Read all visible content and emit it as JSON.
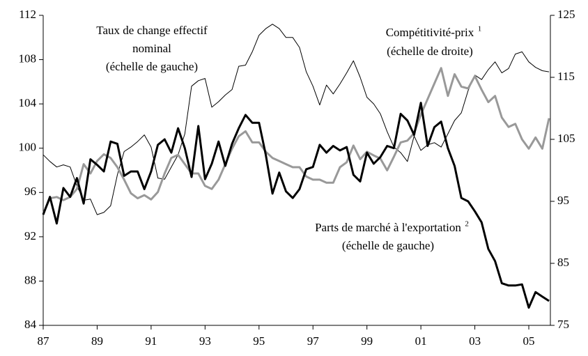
{
  "chart_data": {
    "type": "line",
    "x": [
      1987,
      1987.25,
      1987.5,
      1987.75,
      1988,
      1988.25,
      1988.5,
      1988.75,
      1989,
      1989.25,
      1989.5,
      1989.75,
      1990,
      1990.25,
      1990.5,
      1990.75,
      1991,
      1991.25,
      1991.5,
      1991.75,
      1992,
      1992.25,
      1992.5,
      1992.75,
      1993,
      1993.25,
      1993.5,
      1993.75,
      1994,
      1994.25,
      1994.5,
      1994.75,
      1995,
      1995.25,
      1995.5,
      1995.75,
      1996,
      1996.25,
      1996.5,
      1996.75,
      1997,
      1997.25,
      1997.5,
      1997.75,
      1998,
      1998.25,
      1998.5,
      1998.75,
      1999,
      1999.25,
      1999.5,
      1999.75,
      2000,
      2000.25,
      2000.5,
      2000.75,
      2001,
      2001.25,
      2001.5,
      2001.75,
      2002,
      2002.25,
      2002.5,
      2002.75,
      2003,
      2003.25,
      2003.5,
      2003.75,
      2004,
      2004.25,
      2004.5,
      2004.75,
      2005,
      2005.25,
      2005.5,
      2005.75
    ],
    "series": [
      {
        "color": "#000000",
        "width": 1,
        "axis": "y",
        "values": [
          99.4,
          98.8,
          98.3,
          98.5,
          98.3,
          96.6,
          95.3,
          95.4,
          94,
          94.2,
          94.8,
          97.6,
          99.7,
          100.1,
          100.6,
          101.2,
          100.1,
          97.3,
          97.2,
          98.3,
          99.4,
          101.3,
          105.6,
          106.1,
          106.3,
          103.7,
          104.2,
          104.8,
          105.3,
          107.4,
          107.5,
          108.7,
          110.2,
          110.8,
          111.2,
          110.8,
          110,
          110,
          109.1,
          106.9,
          105.6,
          103.9,
          105.7,
          104.9,
          105.8,
          106.8,
          107.9,
          106.4,
          104.6,
          104,
          103.1,
          101.5,
          100.1,
          99.6,
          98.8,
          101.1,
          99.8,
          100.3,
          100.5,
          100.1,
          101.3,
          102.5,
          103.2,
          105.2,
          106.6,
          106.2,
          107.1,
          107.8,
          106.8,
          107.2,
          108.5,
          108.7,
          107.8,
          107.3,
          107,
          106.9
        ]
      },
      {
        "color": "#999999",
        "width": 3,
        "axis": "y2",
        "values": [
          93,
          95.5,
          95.7,
          95.2,
          95.7,
          97,
          101,
          99.5,
          101.5,
          102.6,
          102,
          100.5,
          98.5,
          96.3,
          95.5,
          96,
          95.3,
          96.5,
          99.5,
          102,
          102.5,
          101,
          99.5,
          99.5,
          97.5,
          97,
          98.5,
          101,
          103.5,
          105.5,
          106.3,
          104.5,
          104.5,
          103,
          102,
          101.5,
          101,
          100.5,
          100.5,
          99,
          98.5,
          98.5,
          98,
          98,
          100.5,
          101.3,
          104,
          101.8,
          103,
          102.4,
          101.9,
          100,
          102.2,
          104.5,
          104.8,
          106,
          109,
          111.5,
          114,
          116.5,
          112,
          115.5,
          113.5,
          113.2,
          115.2,
          113,
          111,
          112,
          108.5,
          107,
          107.5,
          105,
          103.5,
          105.3,
          103.5,
          108.4
        ]
      },
      {
        "color": "#000000",
        "width": 3,
        "axis": "y",
        "values": [
          94,
          95.6,
          93.2,
          96.4,
          95.6,
          97.3,
          95,
          99,
          98.5,
          97.9,
          100.6,
          100.4,
          97.5,
          97.9,
          97.9,
          96.3,
          97.9,
          100.3,
          100.8,
          99.6,
          101.8,
          100,
          97.4,
          102,
          97.2,
          98.6,
          100.6,
          98.4,
          100.4,
          101.8,
          103,
          102.3,
          102.3,
          99.4,
          95.9,
          97.8,
          96.1,
          95.5,
          96.3,
          98.1,
          98.3,
          100.3,
          99.6,
          100.2,
          99.8,
          100.1,
          97.6,
          97,
          99.6,
          98.6,
          99.2,
          100.2,
          100,
          103.1,
          102.5,
          101.2,
          104.1,
          100.2,
          101.9,
          102.4,
          100,
          98.4,
          95.5,
          95.2,
          94.3,
          93.3,
          90.9,
          89.8,
          87.8,
          87.6,
          87.6,
          87.7,
          85.6,
          87,
          86.6,
          86.2
        ]
      }
    ],
    "xlim": [
      1987,
      2005.8
    ],
    "xticks": [
      {
        "value": 1987,
        "label": "87"
      },
      {
        "value": 1989,
        "label": "89"
      },
      {
        "value": 1991,
        "label": "91"
      },
      {
        "value": 1993,
        "label": "93"
      },
      {
        "value": 1995,
        "label": "95"
      },
      {
        "value": 1997,
        "label": "97"
      },
      {
        "value": 1999,
        "label": "99"
      },
      {
        "value": 2001,
        "label": "01"
      },
      {
        "value": 2003,
        "label": "03"
      },
      {
        "value": 2005,
        "label": "05"
      }
    ],
    "ylim": [
      84,
      112
    ],
    "yticks": [
      84,
      88,
      92,
      96,
      100,
      104,
      108,
      112
    ],
    "y2lim": [
      75,
      125
    ],
    "y2ticks": [
      75,
      85,
      95,
      105,
      115,
      125
    ],
    "annotations": [
      {
        "lines": [
          "Taux de change effectif",
          "nominal",
          "(échelle de gauche)"
        ]
      },
      {
        "lines": [
          "Compétitivité-prix",
          "(échelle de droite)"
        ],
        "note": "1"
      },
      {
        "lines": [
          "Parts de marché à l'exportation",
          "(échelle de gauche)"
        ],
        "note": "2"
      }
    ]
  }
}
